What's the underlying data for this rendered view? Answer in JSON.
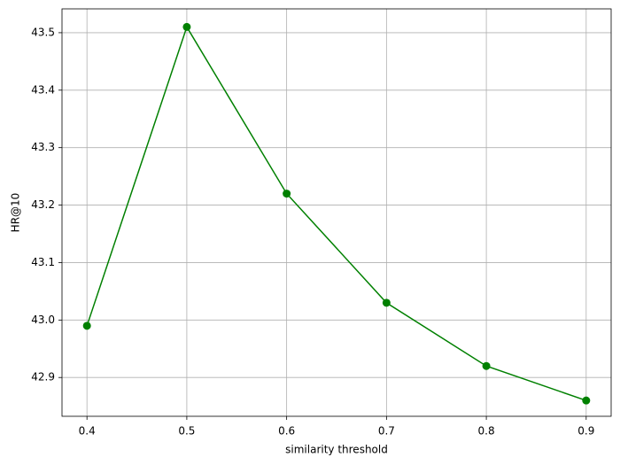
{
  "chart_data": {
    "type": "line",
    "x_label": "similarity threshold",
    "y_label": "HR@10",
    "x": [
      0.4,
      0.5,
      0.6,
      0.7,
      0.8,
      0.9
    ],
    "series": [
      {
        "color": "#008000",
        "values": [
          42.99,
          43.51,
          43.22,
          43.03,
          42.92,
          42.86
        ]
      }
    ],
    "xlim": [
      0.375,
      0.925
    ],
    "ylim": [
      42.8325,
      43.5415
    ],
    "xticks": [
      0.4,
      0.5,
      0.6,
      0.7,
      0.8,
      0.9
    ],
    "yticks": [
      42.9,
      {
        "value": 43,
        "label": "43.0"
      },
      43.1,
      43.2,
      43.3,
      43.4,
      43.5
    ],
    "grid": true,
    "markers": true
  }
}
